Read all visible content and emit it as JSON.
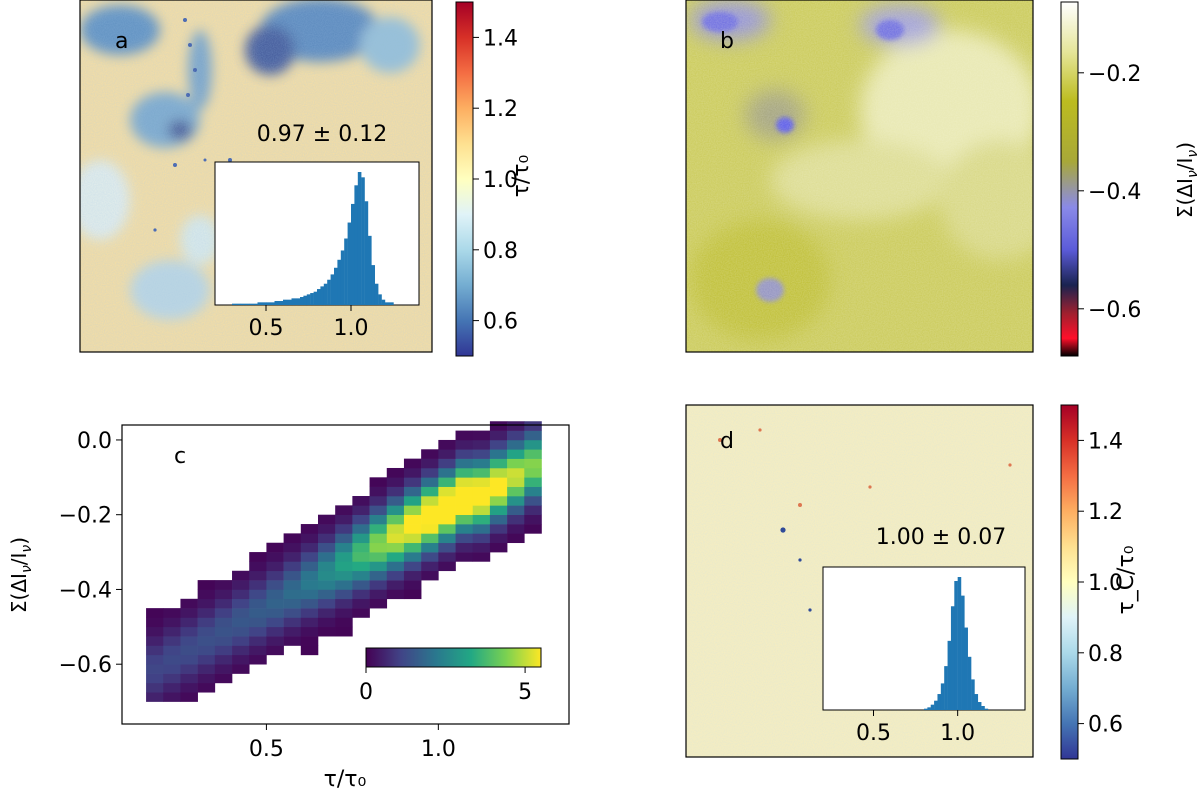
{
  "chart_data": [
    {
      "panel": "a",
      "type": "heatmap",
      "panel_label": "a",
      "annotation": "0.97 ± 0.12",
      "colorbar": {
        "label": "τ/τ₀",
        "range": [
          0.5,
          1.5
        ],
        "ticks": [
          "0.6",
          "0.8",
          "1.0",
          "1.2",
          "1.4"
        ],
        "tick_values": [
          0.6,
          0.8,
          1.0,
          1.2,
          1.4
        ],
        "colormap": "RdYlBu_r"
      },
      "inset_histogram": {
        "type": "bar",
        "xlim": [
          0.2,
          1.4
        ],
        "xticks": [
          "0.5",
          "1.0"
        ],
        "xtick_values": [
          0.5,
          1.0
        ],
        "bins": [
          0.2,
          0.25,
          0.3,
          0.35,
          0.4,
          0.45,
          0.5,
          0.55,
          0.6,
          0.65,
          0.7,
          0.72,
          0.74,
          0.76,
          0.78,
          0.8,
          0.82,
          0.84,
          0.86,
          0.88,
          0.9,
          0.92,
          0.94,
          0.96,
          0.98,
          1.0,
          1.02,
          1.04,
          1.06,
          1.08,
          1.1,
          1.12,
          1.14,
          1.16,
          1.18,
          1.2,
          1.25
        ],
        "counts": [
          0.0,
          0.0,
          0.01,
          0.01,
          0.01,
          0.02,
          0.02,
          0.03,
          0.04,
          0.05,
          0.06,
          0.07,
          0.08,
          0.09,
          0.1,
          0.12,
          0.14,
          0.16,
          0.19,
          0.23,
          0.28,
          0.34,
          0.41,
          0.5,
          0.62,
          0.76,
          0.9,
          1.0,
          0.96,
          0.78,
          0.52,
          0.3,
          0.16,
          0.08,
          0.04,
          0.02,
          0.0
        ]
      }
    },
    {
      "panel": "b",
      "type": "heatmap",
      "panel_label": "b",
      "colorbar": {
        "label": "Σ(ΔI_ν/I_ν)",
        "range": [
          -0.68,
          -0.08
        ],
        "ticks": [
          "−0.2",
          "−0.4",
          "−0.6"
        ],
        "tick_values": [
          -0.2,
          -0.4,
          -0.6
        ],
        "colormap": "gist_stern-like (black-red-navy-blue-olive-white)"
      }
    },
    {
      "panel": "c",
      "type": "heatmap",
      "panel_label": "c",
      "xlabel": "τ/τ₀",
      "ylabel": "Σ(ΔI_ν/I_ν)",
      "xlim": [
        0.08,
        1.38
      ],
      "ylim": [
        -0.76,
        0.04
      ],
      "xticks": [
        "0.5",
        "1.0"
      ],
      "xtick_values": [
        0.5,
        1.0
      ],
      "yticks": [
        "0.0",
        "−0.2",
        "−0.4",
        "−0.6"
      ],
      "ytick_values": [
        0.0,
        -0.2,
        -0.4,
        -0.6
      ],
      "bin_width_x": 0.05,
      "bin_width_y": 0.025,
      "colorbar": {
        "range": [
          0,
          5.5
        ],
        "ticks": [
          "0",
          "5"
        ],
        "tick_values": [
          0,
          5
        ],
        "colormap": "viridis"
      }
    },
    {
      "panel": "d",
      "type": "heatmap",
      "panel_label": "d",
      "annotation": "1.00 ± 0.07",
      "colorbar": {
        "label": "τ_C/τ₀",
        "range": [
          0.5,
          1.5
        ],
        "ticks": [
          "0.6",
          "0.8",
          "1.0",
          "1.2",
          "1.4"
        ],
        "tick_values": [
          0.6,
          0.8,
          1.0,
          1.2,
          1.4
        ],
        "colormap": "RdYlBu_r"
      },
      "inset_histogram": {
        "type": "bar",
        "xlim": [
          0.2,
          1.4
        ],
        "xticks": [
          "0.5",
          "1.0"
        ],
        "xtick_values": [
          0.5,
          1.0
        ],
        "bins": [
          0.8,
          0.82,
          0.84,
          0.86,
          0.88,
          0.9,
          0.92,
          0.94,
          0.96,
          0.98,
          1.0,
          1.02,
          1.04,
          1.06,
          1.08,
          1.1,
          1.12,
          1.14,
          1.16,
          1.18
        ],
        "counts": [
          0.01,
          0.02,
          0.04,
          0.07,
          0.12,
          0.2,
          0.33,
          0.52,
          0.78,
          0.97,
          1.0,
          0.86,
          0.62,
          0.4,
          0.23,
          0.12,
          0.06,
          0.03,
          0.01,
          0.0
        ]
      }
    }
  ]
}
